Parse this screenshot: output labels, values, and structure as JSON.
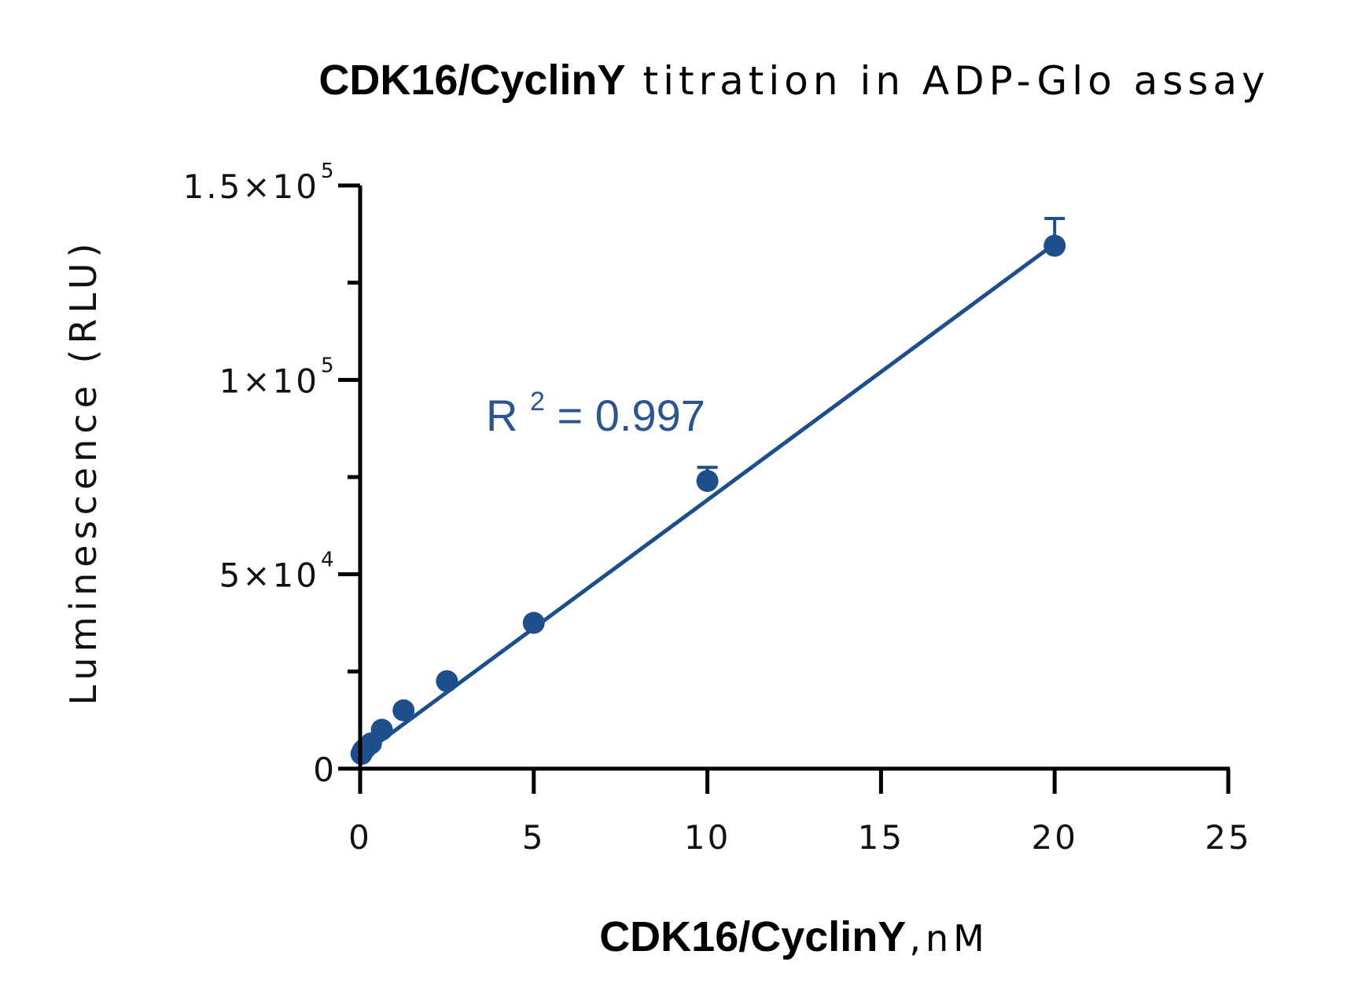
{
  "chart_data": {
    "type": "scatter",
    "title_bold": "CDK16/CyclinY",
    "title_rest": "titration in ADP-Glo assay",
    "xlabel_bold": "CDK16/CyclinY",
    "xlabel_rest": ",nM",
    "ylabel": "Luminescence (RLU)",
    "xlim": [
      0,
      25
    ],
    "ylim": [
      0,
      150000
    ],
    "x_ticks": [
      0,
      5,
      10,
      15,
      20,
      25
    ],
    "x_tick_labels": [
      "0",
      "5",
      "10",
      "15",
      "20",
      "25"
    ],
    "y_major_ticks": [
      0,
      50000,
      100000,
      150000
    ],
    "y_minor_ticks": [
      25000,
      75000,
      125000
    ],
    "y_tick_labels": [
      {
        "value": 0,
        "mantissa": "0",
        "exponent": ""
      },
      {
        "value": 50000,
        "mantissa": "5×10",
        "exponent": "4"
      },
      {
        "value": 100000,
        "mantissa": "1×10",
        "exponent": "5"
      },
      {
        "value": 150000,
        "mantissa": "1.5×10",
        "exponent": "5"
      }
    ],
    "series": [
      {
        "name": "CDK16/CyclinY",
        "color": "#1f4e8c",
        "x": [
          0.039,
          0.078,
          0.156,
          0.3125,
          0.625,
          1.25,
          2.5,
          5,
          10,
          20
        ],
        "y": [
          3800,
          4600,
          5300,
          6500,
          10000,
          15000,
          22500,
          37500,
          74000,
          134500
        ],
        "error": [
          500,
          500,
          500,
          600,
          800,
          900,
          1000,
          1100,
          3500,
          7000
        ]
      }
    ],
    "fit_line": {
      "x": [
        0,
        20
      ],
      "y": [
        3200,
        135000
      ],
      "color": "#1f4e8c"
    },
    "annotation": {
      "label": "R",
      "superscript": "2",
      "value_text": "= 0.997",
      "color": "#2a5591"
    }
  }
}
